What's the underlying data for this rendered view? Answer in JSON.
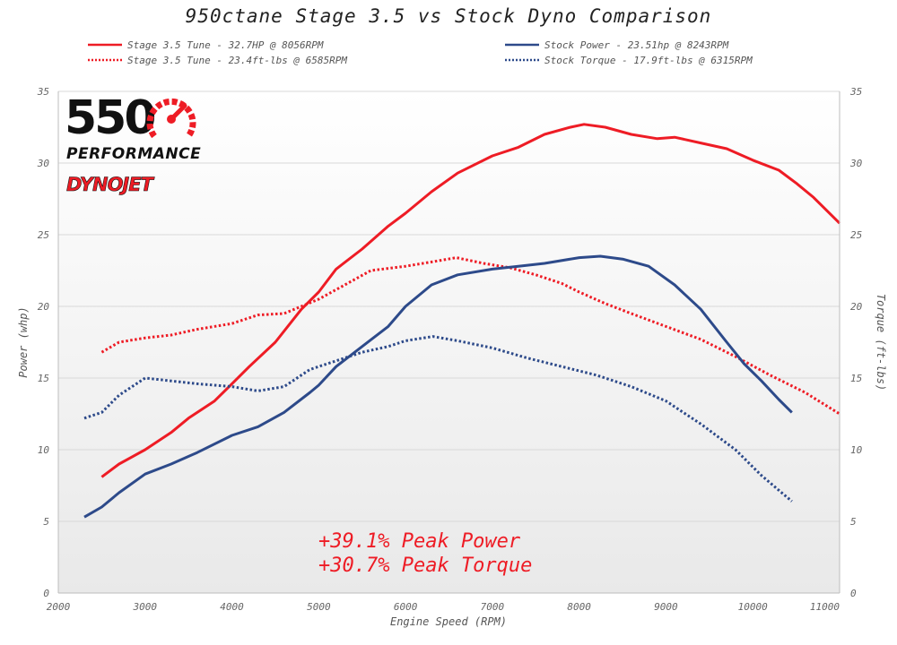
{
  "colors": {
    "red": "#ee1c25",
    "blue": "#2d4a8a",
    "grid": "#d9d9d9",
    "plot_bg_top": "#ffffff",
    "plot_bg_bottom": "#e9e9e9"
  },
  "logo": {
    "number": "550",
    "performance": "PERFORMANCE",
    "dynojet": "DYNOJET",
    "icon": "speedometer-icon"
  },
  "annotations": {
    "power": "+39.1% Peak Power",
    "torque": "+30.7% Peak Torque"
  },
  "chart_data": {
    "type": "line",
    "title": "950ctane Stage 3.5 vs Stock Dyno Comparison",
    "xlabel": "Engine Speed (RPM)",
    "ylabel": "Power (whp)",
    "y2label": "Torque (ft-lbs)",
    "xlim": [
      2000,
      11000
    ],
    "ylim": [
      0,
      35
    ],
    "y2lim": [
      0,
      35
    ],
    "xticks": [
      2000,
      3000,
      4000,
      5000,
      6000,
      7000,
      8000,
      9000,
      10000,
      11000
    ],
    "yticks": [
      0,
      5,
      10,
      15,
      20,
      25,
      30,
      35
    ],
    "grid": true,
    "legend_position": "top",
    "series": [
      {
        "name": "Stage 3.5 Tune - 32.7HP @ 8056RPM",
        "color": "#ee1c25",
        "style": "solid",
        "x": [
          2500,
          2700,
          3000,
          3300,
          3500,
          3800,
          4000,
          4200,
          4500,
          4800,
          5000,
          5200,
          5500,
          5800,
          6000,
          6300,
          6600,
          7000,
          7300,
          7600,
          7900,
          8056,
          8300,
          8600,
          8900,
          9100,
          9400,
          9700,
          10000,
          10300,
          10500,
          10700,
          10900,
          11000
        ],
        "y": [
          8.1,
          9.0,
          10.0,
          11.2,
          12.2,
          13.4,
          14.6,
          15.8,
          17.5,
          19.8,
          21.0,
          22.6,
          24.0,
          25.6,
          26.5,
          28.0,
          29.3,
          30.5,
          31.1,
          32.0,
          32.5,
          32.7,
          32.5,
          32.0,
          31.7,
          31.8,
          31.4,
          31.0,
          30.2,
          29.5,
          28.6,
          27.6,
          26.4,
          25.8
        ]
      },
      {
        "name": "Stage 3.5 Tune - 23.4ft-lbs @ 6585RPM",
        "color": "#ee1c25",
        "style": "dotted",
        "x": [
          2500,
          2700,
          3000,
          3300,
          3600,
          4000,
          4300,
          4600,
          5000,
          5300,
          5600,
          6000,
          6300,
          6585,
          6900,
          7200,
          7500,
          7800,
          8000,
          8300,
          8600,
          9000,
          9400,
          9800,
          10200,
          10600,
          11000
        ],
        "y": [
          16.8,
          17.5,
          17.8,
          18.0,
          18.4,
          18.8,
          19.4,
          19.5,
          20.5,
          21.5,
          22.5,
          22.8,
          23.1,
          23.4,
          23.0,
          22.7,
          22.2,
          21.6,
          21.0,
          20.2,
          19.5,
          18.6,
          17.7,
          16.5,
          15.2,
          14.0,
          12.5
        ]
      },
      {
        "name": "Stock Power - 23.51hp @ 8243RPM",
        "color": "#2d4a8a",
        "style": "solid",
        "x": [
          2300,
          2500,
          2700,
          3000,
          3300,
          3600,
          4000,
          4300,
          4600,
          4900,
          5000,
          5200,
          5500,
          5800,
          6000,
          6300,
          6600,
          7000,
          7300,
          7600,
          8000,
          8243,
          8500,
          8800,
          9100,
          9400,
          9700,
          9900,
          10100,
          10300,
          10450
        ],
        "y": [
          5.3,
          6.0,
          7.0,
          8.3,
          9.0,
          9.8,
          11.0,
          11.6,
          12.6,
          14.0,
          14.5,
          15.8,
          17.2,
          18.6,
          20.0,
          21.5,
          22.2,
          22.6,
          22.8,
          23.0,
          23.4,
          23.5,
          23.3,
          22.8,
          21.5,
          19.8,
          17.5,
          16.0,
          14.8,
          13.5,
          12.6
        ]
      },
      {
        "name": "Stock Torque - 17.9ft-lbs @ 6315RPM",
        "color": "#2d4a8a",
        "style": "dotted",
        "x": [
          2300,
          2500,
          2700,
          3000,
          3300,
          3600,
          4000,
          4300,
          4600,
          4900,
          5000,
          5200,
          5500,
          5800,
          6000,
          6315,
          6600,
          7000,
          7400,
          7800,
          8200,
          8600,
          9000,
          9400,
          9800,
          10100,
          10450
        ],
        "y": [
          12.2,
          12.6,
          13.8,
          15.0,
          14.8,
          14.6,
          14.4,
          14.1,
          14.4,
          15.6,
          15.8,
          16.2,
          16.8,
          17.2,
          17.6,
          17.9,
          17.6,
          17.1,
          16.4,
          15.8,
          15.2,
          14.4,
          13.4,
          11.8,
          10.0,
          8.2,
          6.4
        ]
      }
    ]
  }
}
